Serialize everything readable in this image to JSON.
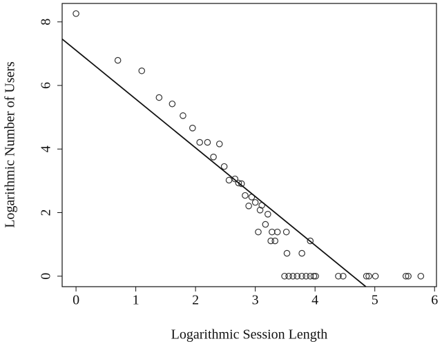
{
  "chart_data": {
    "type": "scatter",
    "x_label": "Logarithmic Session Length",
    "y_label": "Logarithmic Number of Users",
    "x": [
      0,
      0.7,
      1.1,
      1.39,
      1.61,
      1.79,
      1.95,
      2.07,
      2.2,
      2.4,
      2.3,
      2.48,
      2.56,
      2.66,
      2.72,
      2.77,
      2.83,
      2.94,
      2.89,
      3.0,
      3.11,
      3.08,
      3.21,
      3.17,
      3.05,
      3.28,
      3.37,
      3.26,
      3.33,
      3.52,
      3.92,
      3.53,
      3.78,
      3.49,
      3.56,
      3.63,
      3.7,
      3.78,
      3.85,
      3.92,
      3.98,
      4.01,
      4.39,
      4.47,
      4.86,
      4.9,
      5.01,
      5.52,
      5.56,
      5.77
    ],
    "values": [
      8.26,
      6.79,
      6.46,
      5.62,
      5.42,
      5.05,
      4.66,
      4.21,
      4.21,
      4.16,
      3.75,
      3.45,
      3.02,
      3.06,
      2.93,
      2.91,
      2.54,
      2.49,
      2.21,
      2.32,
      2.23,
      2.08,
      1.95,
      1.63,
      1.39,
      1.39,
      1.39,
      1.11,
      1.11,
      1.39,
      1.11,
      0.72,
      0.72,
      0,
      0,
      0,
      0,
      0,
      0,
      0,
      0,
      0,
      0,
      0,
      0,
      0,
      0,
      0,
      0,
      0
    ],
    "color": "#333333",
    "fit": {
      "x": [
        -0.232,
        4.85
      ],
      "values": [
        7.46,
        -0.33
      ],
      "color": "#111111"
    },
    "xlim": [
      -0.232,
      6.032
    ],
    "xticks": [
      0,
      1,
      2,
      3,
      4,
      5,
      6
    ],
    "ylim": [
      -0.33,
      8.58
    ],
    "yticks": [
      0,
      2,
      4,
      6,
      8
    ]
  }
}
